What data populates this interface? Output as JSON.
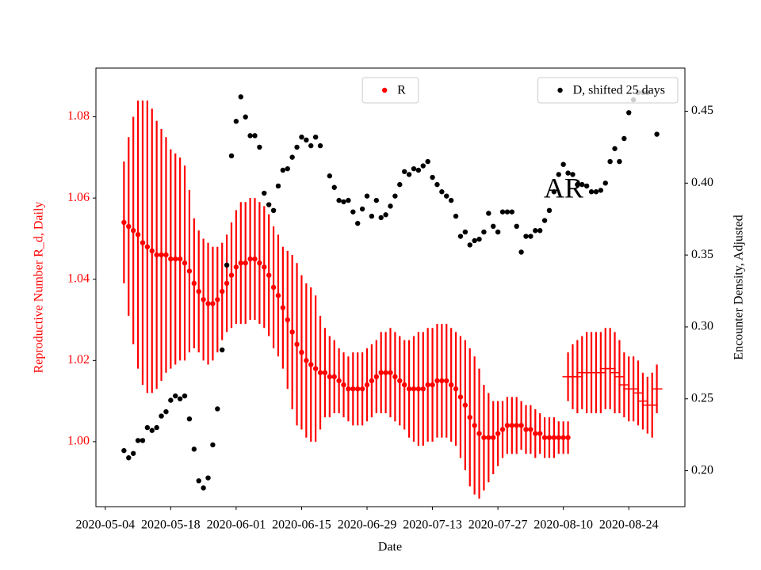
{
  "chart_data": {
    "type": "scatter",
    "xlabel": "Date",
    "ylabel": "Reproductive Number R_d, Daily",
    "y2label": "Encounter Density, Adjusted",
    "ylabel_color": "#ff0000",
    "annotations": [
      "AR"
    ],
    "xlim": [
      "2020-05-02",
      "2020-09-05"
    ],
    "xticks": [
      "2020-05-04",
      "2020-05-18",
      "2020-06-01",
      "2020-06-15",
      "2020-06-29",
      "2020-07-13",
      "2020-07-27",
      "2020-08-10",
      "2020-08-24"
    ],
    "ylim": [
      0.984,
      1.092
    ],
    "yticks": [
      {
        "value": 1.0,
        "label": "1.00"
      },
      1.02,
      1.04,
      1.06,
      1.08
    ],
    "y2lim": [
      0.175,
      0.48
    ],
    "y2ticks": [
      {
        "value": 0.2,
        "label": "0.20"
      },
      0.25,
      {
        "value": 0.3,
        "label": "0.30"
      },
      0.35,
      {
        "value": 0.4,
        "label": "0.40"
      },
      0.45
    ],
    "series": [
      {
        "name": "R",
        "color": "#ff0000",
        "marker": "circle",
        "legend": "upper center",
        "x": [
          "2020-05-08",
          "2020-05-09",
          "2020-05-10",
          "2020-05-11",
          "2020-05-12",
          "2020-05-13",
          "2020-05-14",
          "2020-05-15",
          "2020-05-16",
          "2020-05-17",
          "2020-05-18",
          "2020-05-19",
          "2020-05-20",
          "2020-05-21",
          "2020-05-22",
          "2020-05-23",
          "2020-05-24",
          "2020-05-25",
          "2020-05-26",
          "2020-05-27",
          "2020-05-28",
          "2020-05-29",
          "2020-05-30",
          "2020-05-31",
          "2020-06-01",
          "2020-06-02",
          "2020-06-03",
          "2020-06-04",
          "2020-06-05",
          "2020-06-06",
          "2020-06-07",
          "2020-06-08",
          "2020-06-09",
          "2020-06-10",
          "2020-06-11",
          "2020-06-12",
          "2020-06-13",
          "2020-06-14",
          "2020-06-15",
          "2020-06-16",
          "2020-06-17",
          "2020-06-18",
          "2020-06-19",
          "2020-06-20",
          "2020-06-21",
          "2020-06-22",
          "2020-06-23",
          "2020-06-24",
          "2020-06-25",
          "2020-06-26",
          "2020-06-27",
          "2020-06-28",
          "2020-06-29",
          "2020-06-30",
          "2020-07-01",
          "2020-07-02",
          "2020-07-03",
          "2020-07-04",
          "2020-07-05",
          "2020-07-06",
          "2020-07-07",
          "2020-07-08",
          "2020-07-09",
          "2020-07-10",
          "2020-07-11",
          "2020-07-12",
          "2020-07-13",
          "2020-07-14",
          "2020-07-15",
          "2020-07-16",
          "2020-07-17",
          "2020-07-18",
          "2020-07-19",
          "2020-07-20",
          "2020-07-21",
          "2020-07-22",
          "2020-07-23",
          "2020-07-24",
          "2020-07-25",
          "2020-07-26",
          "2020-07-27",
          "2020-07-28",
          "2020-07-29",
          "2020-07-30",
          "2020-07-31",
          "2020-08-01",
          "2020-08-02",
          "2020-08-03",
          "2020-08-04",
          "2020-08-05",
          "2020-08-06",
          "2020-08-07",
          "2020-08-08",
          "2020-08-09",
          "2020-08-10",
          "2020-08-11"
        ],
        "values": [
          1.054,
          1.053,
          1.052,
          1.051,
          1.049,
          1.048,
          1.047,
          1.046,
          1.046,
          1.046,
          1.045,
          1.045,
          1.045,
          1.044,
          1.042,
          1.039,
          1.037,
          1.035,
          1.034,
          1.034,
          1.035,
          1.037,
          1.039,
          1.041,
          1.043,
          1.044,
          1.044,
          1.045,
          1.045,
          1.044,
          1.043,
          1.041,
          1.038,
          1.036,
          1.033,
          1.03,
          1.027,
          1.024,
          1.022,
          1.02,
          1.019,
          1.018,
          1.017,
          1.017,
          1.016,
          1.016,
          1.015,
          1.014,
          1.013,
          1.013,
          1.013,
          1.013,
          1.014,
          1.015,
          1.016,
          1.017,
          1.017,
          1.017,
          1.016,
          1.015,
          1.014,
          1.013,
          1.013,
          1.013,
          1.013,
          1.014,
          1.014,
          1.015,
          1.015,
          1.015,
          1.014,
          1.013,
          1.011,
          1.009,
          1.006,
          1.004,
          1.002,
          1.001,
          1.001,
          1.001,
          1.002,
          1.003,
          1.004,
          1.004,
          1.004,
          1.004,
          1.003,
          1.003,
          1.002,
          1.002,
          1.001,
          1.001,
          1.001,
          1.001,
          1.001,
          1.001
        ],
        "errors": [
          0.015,
          0.022,
          0.028,
          0.033,
          0.035,
          0.036,
          0.035,
          0.033,
          0.031,
          0.029,
          0.027,
          0.026,
          0.025,
          0.024,
          0.02,
          0.016,
          0.015,
          0.015,
          0.015,
          0.014,
          0.013,
          0.012,
          0.012,
          0.013,
          0.014,
          0.015,
          0.015,
          0.015,
          0.015,
          0.015,
          0.015,
          0.015,
          0.015,
          0.015,
          0.015,
          0.017,
          0.019,
          0.02,
          0.019,
          0.019,
          0.019,
          0.018,
          0.014,
          0.011,
          0.01,
          0.009,
          0.008,
          0.008,
          0.008,
          0.009,
          0.009,
          0.009,
          0.009,
          0.009,
          0.009,
          0.01,
          0.01,
          0.011,
          0.011,
          0.011,
          0.011,
          0.012,
          0.013,
          0.014,
          0.014,
          0.014,
          0.014,
          0.014,
          0.014,
          0.014,
          0.014,
          0.014,
          0.015,
          0.016,
          0.017,
          0.017,
          0.016,
          0.013,
          0.011,
          0.009,
          0.008,
          0.007,
          0.007,
          0.007,
          0.007,
          0.006,
          0.006,
          0.006,
          0.006,
          0.005,
          0.005,
          0.005,
          0.005,
          0.004,
          0.004,
          0.004
        ]
      },
      {
        "color": "#ff0000",
        "marker": "hline",
        "x": [
          "2020-08-11",
          "2020-08-12",
          "2020-08-13",
          "2020-08-14",
          "2020-08-15",
          "2020-08-16",
          "2020-08-17",
          "2020-08-18",
          "2020-08-19",
          "2020-08-20",
          "2020-08-21",
          "2020-08-22",
          "2020-08-23",
          "2020-08-24",
          "2020-08-25",
          "2020-08-26",
          "2020-08-27",
          "2020-08-28",
          "2020-08-29",
          "2020-08-30"
        ],
        "values": [
          1.016,
          1.016,
          1.016,
          1.017,
          1.017,
          1.017,
          1.017,
          1.017,
          1.018,
          1.018,
          1.017,
          1.016,
          1.014,
          1.013,
          1.013,
          1.012,
          1.01,
          1.009,
          1.009,
          1.013
        ],
        "errors": [
          0.006,
          0.008,
          0.009,
          0.009,
          0.01,
          0.01,
          0.01,
          0.01,
          0.01,
          0.01,
          0.01,
          0.009,
          0.008,
          0.008,
          0.008,
          0.008,
          0.007,
          0.007,
          0.008,
          0.006
        ]
      },
      {
        "name": "D, shifted 25 days",
        "color": "#000000",
        "marker": "circle",
        "axis": "y2",
        "legend": "upper right",
        "x": [
          "2020-05-08",
          "2020-05-09",
          "2020-05-10",
          "2020-05-11",
          "2020-05-12",
          "2020-05-13",
          "2020-05-14",
          "2020-05-15",
          "2020-05-16",
          "2020-05-17",
          "2020-05-18",
          "2020-05-19",
          "2020-05-20",
          "2020-05-21",
          "2020-05-22",
          "2020-05-23",
          "2020-05-24",
          "2020-05-25",
          "2020-05-26",
          "2020-05-27",
          "2020-05-28",
          "2020-05-29",
          "2020-05-30",
          "2020-05-31",
          "2020-06-01",
          "2020-06-02",
          "2020-06-03",
          "2020-06-04",
          "2020-06-05",
          "2020-06-06",
          "2020-06-07",
          "2020-06-08",
          "2020-06-09",
          "2020-06-10",
          "2020-06-11",
          "2020-06-12",
          "2020-06-13",
          "2020-06-14",
          "2020-06-15",
          "2020-06-16",
          "2020-06-17",
          "2020-06-18",
          "2020-06-19",
          "2020-06-21",
          "2020-06-22",
          "2020-06-23",
          "2020-06-24",
          "2020-06-25",
          "2020-06-26",
          "2020-06-27",
          "2020-06-28",
          "2020-06-29",
          "2020-06-30",
          "2020-07-01",
          "2020-07-02",
          "2020-07-03",
          "2020-07-04",
          "2020-07-05",
          "2020-07-06",
          "2020-07-07",
          "2020-07-08",
          "2020-07-09",
          "2020-07-10",
          "2020-07-11",
          "2020-07-12",
          "2020-07-13",
          "2020-07-14",
          "2020-07-15",
          "2020-07-16",
          "2020-07-17",
          "2020-07-18",
          "2020-07-19",
          "2020-07-20",
          "2020-07-21",
          "2020-07-22",
          "2020-07-23",
          "2020-07-24",
          "2020-07-25",
          "2020-07-26",
          "2020-07-27",
          "2020-07-28",
          "2020-07-29",
          "2020-07-30",
          "2020-07-31",
          "2020-08-01",
          "2020-08-02",
          "2020-08-03",
          "2020-08-04",
          "2020-08-05",
          "2020-08-06",
          "2020-08-07",
          "2020-08-08",
          "2020-08-09",
          "2020-08-10",
          "2020-08-11",
          "2020-08-12",
          "2020-08-13",
          "2020-08-14",
          "2020-08-15",
          "2020-08-16",
          "2020-08-17",
          "2020-08-18",
          "2020-08-19",
          "2020-08-20",
          "2020-08-21",
          "2020-08-22",
          "2020-08-23",
          "2020-08-24",
          "2020-08-25",
          "2020-08-26",
          "2020-08-27",
          "2020-08-28",
          "2020-08-30"
        ],
        "values": [
          0.214,
          0.209,
          0.212,
          0.221,
          0.221,
          0.23,
          0.228,
          0.23,
          0.238,
          0.241,
          0.249,
          0.252,
          0.25,
          0.252,
          0.236,
          0.215,
          0.193,
          0.188,
          0.195,
          0.218,
          0.243,
          0.284,
          0.343,
          0.419,
          0.443,
          0.46,
          0.446,
          0.433,
          0.433,
          0.425,
          0.393,
          0.385,
          0.381,
          0.398,
          0.409,
          0.41,
          0.418,
          0.425,
          0.432,
          0.43,
          0.426,
          0.432,
          0.426,
          0.405,
          0.397,
          0.388,
          0.387,
          0.388,
          0.38,
          0.372,
          0.382,
          0.391,
          0.377,
          0.388,
          0.376,
          0.378,
          0.384,
          0.391,
          0.399,
          0.408,
          0.406,
          0.41,
          0.409,
          0.412,
          0.415,
          0.404,
          0.399,
          0.394,
          0.391,
          0.388,
          0.377,
          0.363,
          0.366,
          0.357,
          0.36,
          0.361,
          0.366,
          0.379,
          0.37,
          0.366,
          0.38,
          0.38,
          0.38,
          0.37,
          0.352,
          0.363,
          0.363,
          0.367,
          0.367,
          0.374,
          0.381,
          0.394,
          0.406,
          0.413,
          0.407,
          0.406,
          0.399,
          0.399,
          0.398,
          0.394,
          0.394,
          0.395,
          0.4,
          0.415,
          0.424,
          0.415,
          0.431,
          0.449,
          0.458,
          0.463,
          0.463,
          0.463,
          0.434
        ]
      }
    ]
  }
}
